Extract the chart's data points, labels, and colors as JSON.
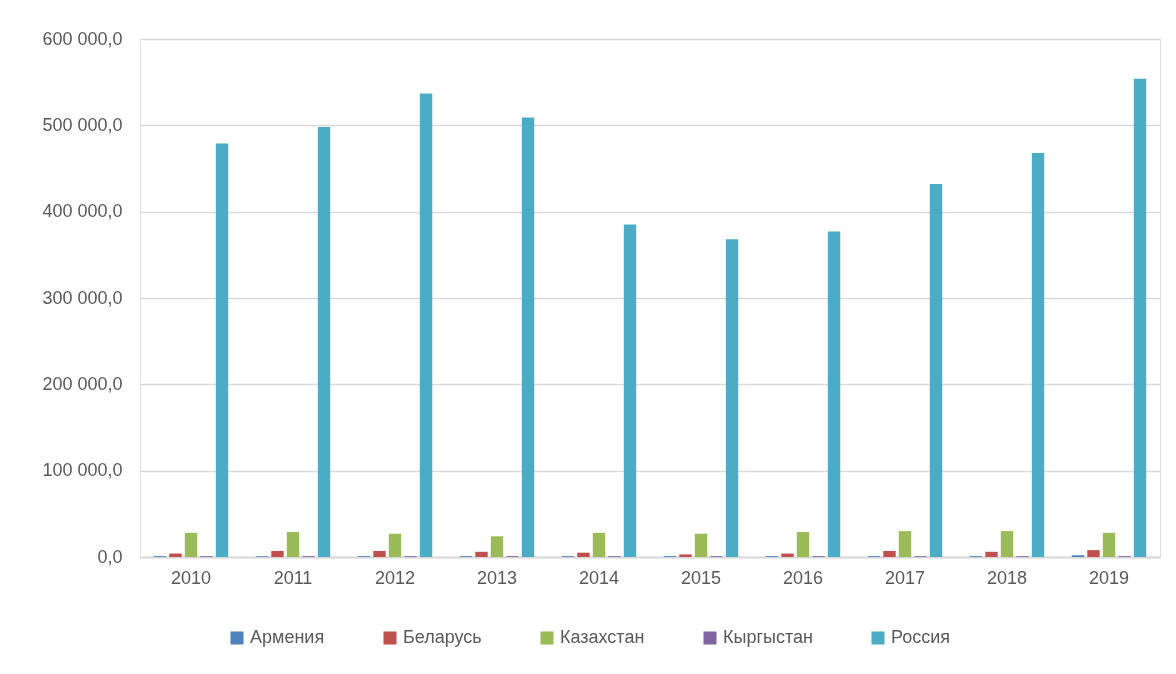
{
  "chart_data": {
    "type": "bar",
    "categories": [
      "2010",
      "2011",
      "2012",
      "2013",
      "2014",
      "2015",
      "2016",
      "2017",
      "2018",
      "2019"
    ],
    "series": [
      {
        "name": "Армения",
        "color": "#4f81bd",
        "values": [
          1000,
          1000,
          1000,
          1000,
          1000,
          1000,
          1000,
          1000,
          1000,
          2000
        ]
      },
      {
        "name": "Беларусь",
        "color": "#c0504d",
        "values": [
          4000,
          7000,
          7000,
          6000,
          5000,
          3000,
          4000,
          7000,
          6000,
          8000
        ]
      },
      {
        "name": "Казахстан",
        "color": "#9bbb59",
        "values": [
          28000,
          29000,
          27000,
          24000,
          28000,
          27000,
          29000,
          30000,
          30000,
          28000
        ]
      },
      {
        "name": "Кыргыстан",
        "color": "#8064a2",
        "values": [
          1000,
          1000,
          1000,
          1000,
          1000,
          1000,
          1000,
          1000,
          1000,
          1000
        ]
      },
      {
        "name": "Россия",
        "color": "#4bacc6",
        "values": [
          479000,
          498000,
          537000,
          509000,
          385000,
          368000,
          377000,
          432000,
          468000,
          554000
        ]
      }
    ],
    "ylim": [
      0,
      600000
    ],
    "yticks": [
      {
        "value": 0,
        "label": "0,0"
      },
      {
        "value": 100000,
        "label": "100 000,0"
      },
      {
        "value": 200000,
        "label": "200 000,0"
      },
      {
        "value": 300000,
        "label": "300 000,0"
      },
      {
        "value": 400000,
        "label": "400 000,0"
      },
      {
        "value": 500000,
        "label": "500 000,0"
      },
      {
        "value": 600000,
        "label": "600 000,0"
      }
    ],
    "grid": "y",
    "legend": "bottom"
  }
}
